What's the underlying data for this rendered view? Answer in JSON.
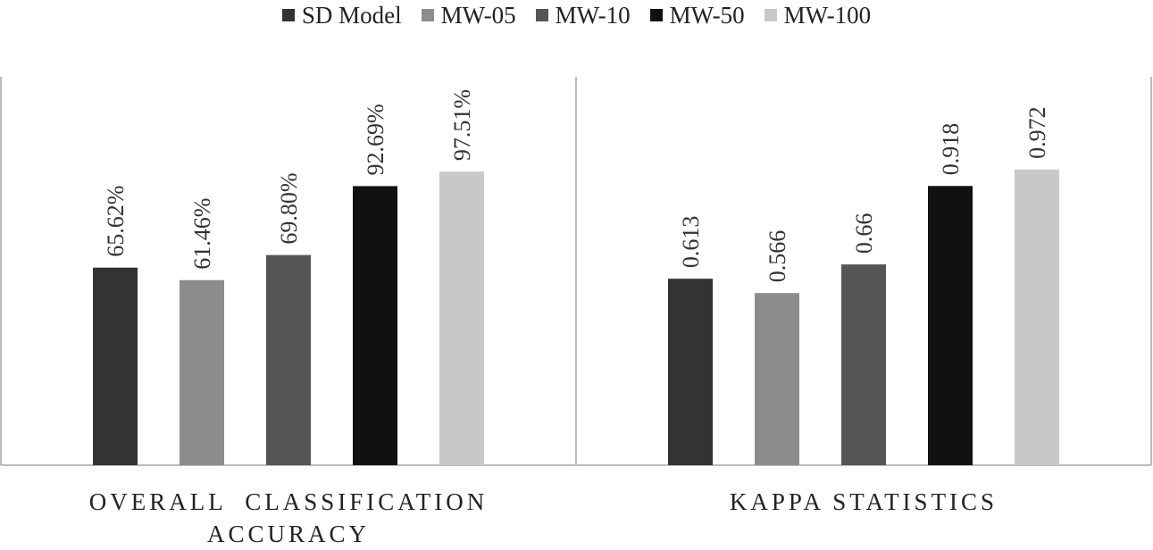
{
  "chart_data": {
    "type": "bar",
    "categories": [
      "OVERALL  CLASSIFICATION ACCURACY",
      "KAPPA STATISTICS"
    ],
    "series": [
      {
        "name": "SD Model",
        "color": "#333333",
        "values": [
          65.62,
          0.613
        ],
        "labels": [
          "65.62%",
          "0.613"
        ]
      },
      {
        "name": "MW-05",
        "color": "#8c8c8c",
        "values": [
          61.46,
          0.566
        ],
        "labels": [
          "61.46%",
          "0.566"
        ]
      },
      {
        "name": "MW-10",
        "color": "#555555",
        "values": [
          69.8,
          0.66
        ],
        "labels": [
          "69.80%",
          "0.66"
        ]
      },
      {
        "name": "MW-50",
        "color": "#111111",
        "values": [
          92.69,
          0.918
        ],
        "labels": [
          "92.69%",
          "0.918"
        ]
      },
      {
        "name": "MW-100",
        "color": "#c8c8c8",
        "values": [
          97.51,
          0.972
        ],
        "labels": [
          "97.51%",
          "0.972"
        ]
      }
    ],
    "panel_ranges": [
      [
        0,
        129
      ],
      [
        0,
        1.277
      ]
    ],
    "legend_position": "top-center",
    "grid": false
  }
}
